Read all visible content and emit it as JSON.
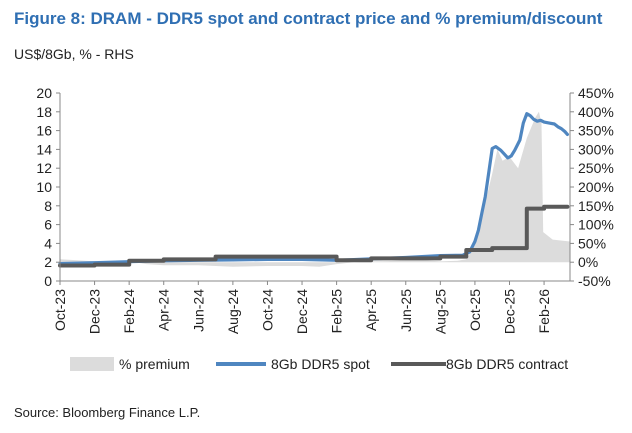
{
  "figure": {
    "title": "Figure 8: DRAM - DDR5 spot and contract price and % premium/discount",
    "subtitle": "US$/8Gb, % - RHS",
    "source": "Source: Bloomberg Finance L.P."
  },
  "colors": {
    "title": "#2f6fb3",
    "premium": "#dcdcdc",
    "spot": "#4f86c0",
    "contract": "#595959"
  },
  "chart_data": {
    "type": "line",
    "title": "Figure 8: DRAM - DDR5 spot and contract price and % premium/discount",
    "ylabel": "US$/8Gb",
    "y2label": "% - RHS",
    "ylim": [
      0,
      20
    ],
    "y2lim": [
      -50,
      450
    ],
    "yticks": [
      "0",
      "2",
      "4",
      "6",
      "8",
      "10",
      "12",
      "14",
      "16",
      "18",
      "20"
    ],
    "y2ticks": [
      "-50%",
      "0%",
      "50%",
      "100%",
      "150%",
      "200%",
      "250%",
      "300%",
      "350%",
      "400%",
      "450%"
    ],
    "xlim": [
      0,
      29.5
    ],
    "xticks": [
      {
        "label": "Oct-23",
        "month": 0
      },
      {
        "label": "Dec-23",
        "month": 2
      },
      {
        "label": "Feb-24",
        "month": 4
      },
      {
        "label": "Apr-24",
        "month": 6
      },
      {
        "label": "Jun-24",
        "month": 8
      },
      {
        "label": "Aug-24",
        "month": 10
      },
      {
        "label": "Oct-24",
        "month": 12
      },
      {
        "label": "Dec-24",
        "month": 14
      },
      {
        "label": "Feb-25",
        "month": 16
      },
      {
        "label": "Apr-25",
        "month": 18
      },
      {
        "label": "Jun-25",
        "month": 20
      },
      {
        "label": "Aug-25",
        "month": 22
      },
      {
        "label": "Oct-25",
        "month": 24
      },
      {
        "label": "Dec-25",
        "month": 26
      },
      {
        "label": "Feb-26",
        "month": 28
      }
    ],
    "legend": [
      {
        "name": "% premium",
        "kind": "area"
      },
      {
        "name": "8Gb DDR5 spot",
        "kind": "line"
      },
      {
        "name": "8Gb DDR5 contract",
        "kind": "line"
      }
    ],
    "series": [
      {
        "name": "% premium",
        "axis": "right",
        "type": "area",
        "points": [
          [
            0,
            8
          ],
          [
            1,
            5
          ],
          [
            2,
            2
          ],
          [
            3,
            0
          ],
          [
            4,
            2
          ],
          [
            5,
            -5
          ],
          [
            6,
            -8
          ],
          [
            8,
            -8
          ],
          [
            10,
            -12
          ],
          [
            12,
            -10
          ],
          [
            14,
            -10
          ],
          [
            15,
            -12
          ],
          [
            16,
            -5
          ],
          [
            17,
            0
          ],
          [
            18,
            2
          ],
          [
            19,
            3
          ],
          [
            20,
            5
          ],
          [
            21,
            5
          ],
          [
            22,
            2
          ],
          [
            23,
            4
          ],
          [
            23.5,
            8
          ],
          [
            24,
            45
          ],
          [
            24.5,
            140
          ],
          [
            25,
            235
          ],
          [
            25.3,
            300
          ],
          [
            25.6,
            270
          ],
          [
            26,
            280
          ],
          [
            26.5,
            250
          ],
          [
            27,
            330
          ],
          [
            27.5,
            385
          ],
          [
            27.7,
            400
          ],
          [
            27.85,
            370
          ],
          [
            27.95,
            80
          ],
          [
            28.5,
            60
          ],
          [
            29.5,
            55
          ]
        ]
      },
      {
        "name": "8Gb DDR5 spot",
        "axis": "left",
        "type": "line",
        "points": [
          [
            0,
            1.85
          ],
          [
            2,
            1.95
          ],
          [
            4,
            2.05
          ],
          [
            6,
            2.15
          ],
          [
            8,
            2.2
          ],
          [
            10,
            2.25
          ],
          [
            12,
            2.3
          ],
          [
            14,
            2.3
          ],
          [
            16,
            2.2
          ],
          [
            18,
            2.35
          ],
          [
            20,
            2.5
          ],
          [
            22,
            2.7
          ],
          [
            23.3,
            2.75
          ],
          [
            23.7,
            3.1
          ],
          [
            24,
            4.2
          ],
          [
            24.2,
            5.4
          ],
          [
            24.4,
            7.2
          ],
          [
            24.6,
            9.0
          ],
          [
            24.8,
            11.5
          ],
          [
            25.0,
            14.1
          ],
          [
            25.2,
            14.3
          ],
          [
            25.5,
            13.9
          ],
          [
            25.7,
            13.5
          ],
          [
            25.9,
            13.1
          ],
          [
            26.1,
            13.3
          ],
          [
            26.3,
            13.9
          ],
          [
            26.6,
            15.0
          ],
          [
            26.8,
            16.8
          ],
          [
            27.0,
            17.8
          ],
          [
            27.2,
            17.6
          ],
          [
            27.4,
            17.2
          ],
          [
            27.6,
            17.0
          ],
          [
            27.8,
            17.1
          ],
          [
            28.0,
            16.9
          ],
          [
            28.3,
            16.8
          ],
          [
            28.6,
            16.7
          ],
          [
            28.8,
            16.4
          ],
          [
            29.0,
            16.2
          ],
          [
            29.2,
            15.9
          ],
          [
            29.35,
            15.6
          ]
        ]
      },
      {
        "name": "8Gb DDR5 contract",
        "axis": "left",
        "type": "line",
        "points": [
          [
            0,
            1.65
          ],
          [
            2,
            1.65
          ],
          [
            2,
            1.75
          ],
          [
            4,
            1.75
          ],
          [
            4,
            2.15
          ],
          [
            6,
            2.15
          ],
          [
            6,
            2.3
          ],
          [
            9,
            2.3
          ],
          [
            9,
            2.6
          ],
          [
            16,
            2.6
          ],
          [
            16,
            2.2
          ],
          [
            18,
            2.2
          ],
          [
            18,
            2.4
          ],
          [
            22,
            2.4
          ],
          [
            22,
            2.6
          ],
          [
            23.5,
            2.6
          ],
          [
            23.5,
            3.3
          ],
          [
            25.0,
            3.3
          ],
          [
            25.0,
            3.5
          ],
          [
            27.0,
            3.5
          ],
          [
            27.0,
            7.7
          ],
          [
            28.0,
            7.7
          ],
          [
            28.0,
            7.9
          ],
          [
            29.35,
            7.9
          ]
        ]
      }
    ]
  }
}
